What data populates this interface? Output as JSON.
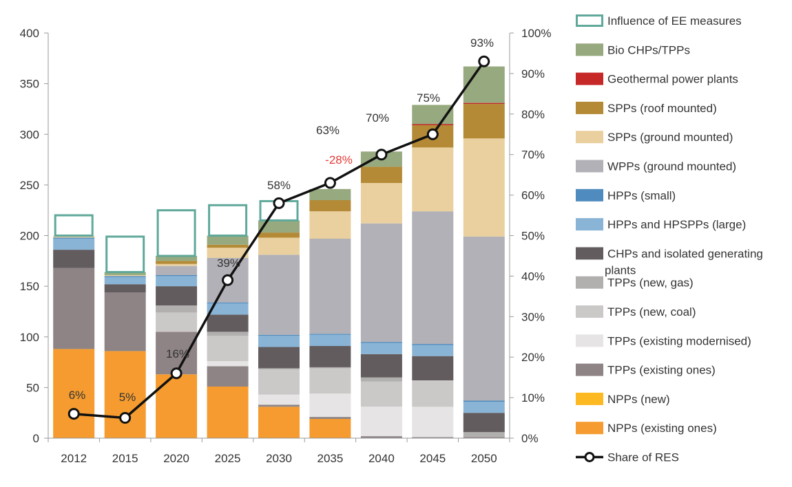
{
  "chart_data": {
    "type": "bar",
    "stacked": true,
    "categories": [
      "2012",
      "2015",
      "2020",
      "2025",
      "2030",
      "2035",
      "2040",
      "2045",
      "2050"
    ],
    "ylim": [
      0,
      400
    ],
    "yticks": [
      "0",
      "50",
      "100",
      "150",
      "200",
      "250",
      "300",
      "350",
      "400"
    ],
    "y2lim": [
      0,
      100
    ],
    "y2ticks": [
      "0%",
      "10%",
      "20%",
      "30%",
      "40%",
      "50%",
      "60%",
      "70%",
      "80%",
      "90%",
      "100%"
    ],
    "grid": false,
    "legend_position": "right",
    "series": [
      {
        "name": "NPPs (existing ones)",
        "color": "#F59B2F",
        "values": [
          88,
          86,
          63,
          51,
          31,
          19,
          0,
          0,
          0
        ]
      },
      {
        "name": "NPPs (new)",
        "color": "#FDB922",
        "values": [
          0,
          0,
          0,
          0,
          0,
          0,
          0,
          0,
          0
        ]
      },
      {
        "name": "TPPs (existing ones)",
        "color": "#8E8485",
        "values": [
          80,
          58,
          42,
          20,
          2,
          2,
          2,
          1,
          1
        ]
      },
      {
        "name": "TPPs (existing modernised)",
        "color": "#E6E4E4",
        "values": [
          0,
          0,
          0,
          5,
          10,
          23,
          29,
          30,
          0
        ]
      },
      {
        "name": "TPPs (new, coal)",
        "color": "#CBC8C8",
        "values": [
          0,
          0,
          19,
          25,
          25,
          25,
          25,
          26,
          0
        ]
      },
      {
        "name": "TPPs (new, gas)",
        "color": "#B2AFAF",
        "values": [
          0,
          0,
          7,
          4,
          1,
          1,
          4,
          0,
          5
        ]
      },
      {
        "name": "CHPs and isolated generating plants",
        "color": "#625C5E",
        "values": [
          18,
          8,
          19,
          17,
          21,
          21,
          23,
          24,
          19
        ]
      },
      {
        "name": "HPPs and HPSPPs (large)",
        "color": "#89B4D6",
        "values": [
          11,
          7,
          10,
          11,
          11,
          11,
          11,
          11,
          11
        ]
      },
      {
        "name": "HPPs (small)",
        "color": "#4F8BBE",
        "values": [
          1,
          1,
          1,
          1,
          1,
          1,
          1,
          1,
          1
        ]
      },
      {
        "name": "WPPs (ground mounted)",
        "color": "#B1B1B7",
        "values": [
          0,
          0,
          9,
          44,
          79,
          94,
          117,
          131,
          162
        ]
      },
      {
        "name": "SPPs (ground mounted)",
        "color": "#E9D09E",
        "values": [
          2,
          1,
          2,
          10,
          17,
          27,
          40,
          63,
          97
        ]
      },
      {
        "name": "SPPs (roof mounted)",
        "color": "#B48A36",
        "values": [
          0,
          0,
          3,
          3,
          5,
          11,
          16,
          22,
          34
        ]
      },
      {
        "name": "Geothermal power plants",
        "color": "#C62828",
        "values": [
          0,
          0,
          0,
          0,
          0,
          0,
          0,
          1,
          1
        ]
      },
      {
        "name": "Bio CHPs/TPPs",
        "color": "#97A97E",
        "values": [
          0,
          3,
          5,
          9,
          12,
          11,
          15,
          19,
          36
        ]
      }
    ],
    "ee_measures": {
      "name": "Influence of EE measures",
      "color": "#5FA89A",
      "values": [
        20,
        35,
        45,
        30,
        19,
        0,
        0
      ]
    },
    "ee_label": "-28%",
    "line": {
      "name": "Share of RES",
      "values": [
        6,
        5,
        16,
        39,
        58,
        63,
        70,
        75,
        93
      ],
      "labels": [
        "6%",
        "5%",
        "16%",
        "39%",
        "58%",
        "63%",
        "70%",
        "75%",
        "93%"
      ]
    }
  }
}
